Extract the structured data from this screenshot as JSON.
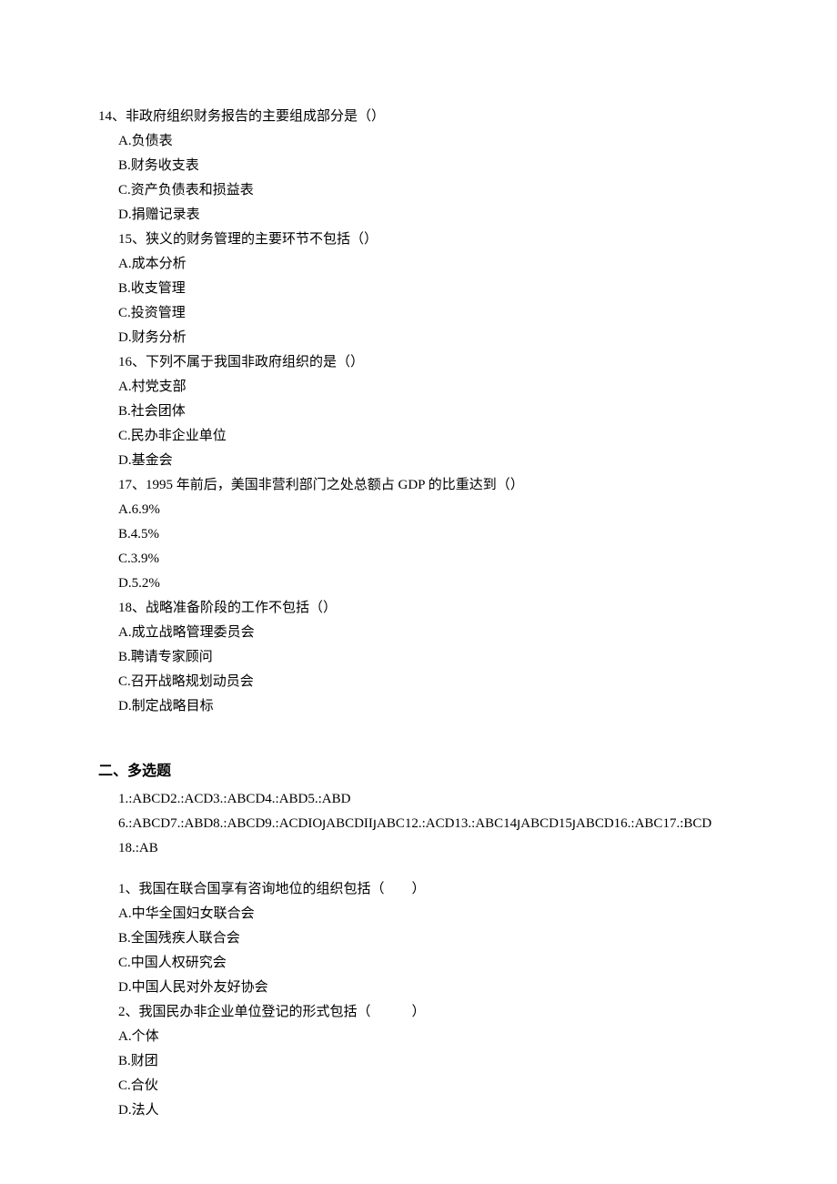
{
  "part1": {
    "q14": {
      "stem": "14、非政府组织财务报告的主要组成部分是（）",
      "opts": [
        "A.负债表",
        "B.财务收支表",
        "C.资产负债表和损益表",
        "D.捐赠记录表"
      ]
    },
    "q15": {
      "stem": "15、狭义的财务管理的主要环节不包括（）",
      "opts": [
        "A.成本分析",
        "B.收支管理",
        "C.投资管理",
        "D.财务分析"
      ]
    },
    "q16": {
      "stem": "16、下列不属于我国非政府组织的是（）",
      "opts": [
        "A.村党支部",
        "B.社会团体",
        "C.民办非企业单位",
        "D.基金会"
      ]
    },
    "q17": {
      "stem": "17、1995 年前后，美国非营利部门之处总额占 GDP 的比重达到（）",
      "opts": [
        "A.6.9%",
        "B.4.5%",
        "C.3.9%",
        "D.5.2%"
      ]
    },
    "q18": {
      "stem": "18、战略准备阶段的工作不包括（）",
      "opts": [
        "A.成立战略管理委员会",
        "B.聘请专家顾问",
        "C.召开战略规划动员会",
        "D.制定战略目标"
      ]
    }
  },
  "part2": {
    "title": "二、多选题",
    "answers_line1": "1.:ABCD2.:ACD3.:ABCD4.:ABD5.:ABD",
    "answers_line2": "6.:ABCD7.:ABD8.:ABCD9.:ACDIOյABCDIIյABC12.:ACD13.:ABC14յABCD15յABCD16.:ABC17.:BCD",
    "answers_line3": "18.:AB",
    "q1": {
      "stem": "1、我国在联合国享有咨询地位的组织包括（  ）",
      "opts": [
        "A.中华全国妇女联合会",
        "B.全国残疾人联合会",
        "C.中国人权研究会",
        "D.中国人民对外友好协会"
      ]
    },
    "q2": {
      "stem": "2、我国民办非企业单位登记的形式包括（   ）",
      "opts": [
        "A.个体",
        "B.财团",
        "C.合伙",
        "D.法人"
      ]
    }
  }
}
